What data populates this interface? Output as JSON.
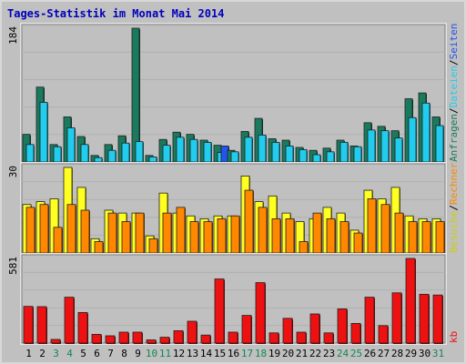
{
  "chart_data": {
    "type": "bar",
    "title": "Tages-Statistik im Monat Mai 2014",
    "categories": [
      "1",
      "2",
      "3",
      "4",
      "5",
      "6",
      "7",
      "8",
      "9",
      "10",
      "11",
      "12",
      "13",
      "14",
      "15",
      "16",
      "17",
      "18",
      "19",
      "20",
      "21",
      "22",
      "23",
      "24",
      "25",
      "26",
      "27",
      "28",
      "29",
      "30",
      "31"
    ],
    "weekend_days": [
      "3",
      "4",
      "10",
      "11",
      "17",
      "18",
      "24",
      "25",
      "31"
    ],
    "panels": [
      {
        "name": "hits",
        "ymax_label": "184",
        "ymax": 184,
        "right_labels": [
          "Anfragen",
          "/",
          "Dateien",
          "/",
          "Seiten"
        ],
        "series": [
          {
            "name": "Anfragen",
            "color": "#1a7a5e",
            "values": [
              38,
              103,
              24,
              62,
              35,
              9,
              24,
              36,
              184,
              9,
              31,
              41,
              38,
              30,
              23,
              16,
              42,
              60,
              32,
              30,
              20,
              16,
              19,
              30,
              22,
              54,
              49,
              43,
              87,
              95,
              62
            ]
          },
          {
            "name": "Dateien",
            "color": "#22ccee",
            "values": [
              24,
              82,
              21,
              47,
              24,
              6,
              16,
              26,
              28,
              7,
              23,
              34,
              31,
              27,
              13,
              14,
              34,
              37,
              27,
              22,
              17,
              10,
              14,
              27,
              21,
              44,
              43,
              33,
              61,
              81,
              50
            ]
          },
          {
            "name": "Seiten",
            "color": "#2255ee",
            "values": [
              0,
              0,
              0,
              0,
              0,
              0,
              0,
              0,
              0,
              0,
              0,
              0,
              0,
              0,
              22,
              0,
              0,
              0,
              0,
              0,
              0,
              0,
              0,
              0,
              0,
              0,
              0,
              0,
              0,
              0,
              0
            ]
          }
        ]
      },
      {
        "name": "visits",
        "ymax_label": "30",
        "ymax": 30,
        "right_labels": [
          "Besuche",
          "/",
          "Rechner"
        ],
        "series": [
          {
            "name": "Besuche",
            "color": "#ffff22",
            "values": [
              17,
              18,
              19,
              30,
              23,
              5,
              15,
              14,
              14,
              6,
              21,
              14,
              13,
              12,
              13,
              13,
              27,
              18,
              20,
              14,
              11,
              12,
              16,
              14,
              8,
              22,
              19,
              23,
              13,
              12,
              12
            ]
          },
          {
            "name": "Rechner",
            "color": "#ff8800",
            "values": [
              16,
              17,
              9,
              17,
              15,
              4,
              14,
              11,
              14,
              5,
              14,
              16,
              11,
              11,
              12,
              13,
              22,
              16,
              12,
              12,
              4,
              14,
              12,
              11,
              7,
              19,
              17,
              14,
              11,
              11,
              11
            ]
          }
        ]
      },
      {
        "name": "kb",
        "ymax_label": "581",
        "ymax": 581,
        "right_labels": [
          "kb"
        ],
        "series": [
          {
            "name": "kb",
            "color": "#ee1111",
            "values": [
              252,
              250,
              25,
              315,
              210,
              60,
              50,
              75,
              75,
              22,
              40,
              85,
              150,
              55,
              440,
              75,
              190,
              415,
              70,
              170,
              75,
              200,
              70,
              235,
              135,
              315,
              120,
              345,
              581,
              335,
              330
            ]
          }
        ]
      }
    ],
    "colors": {
      "background": "#c0c0c0",
      "frame": "#e8e8e8",
      "title": "#0000bb",
      "label": "#000000",
      "weekend": "#118855"
    }
  }
}
